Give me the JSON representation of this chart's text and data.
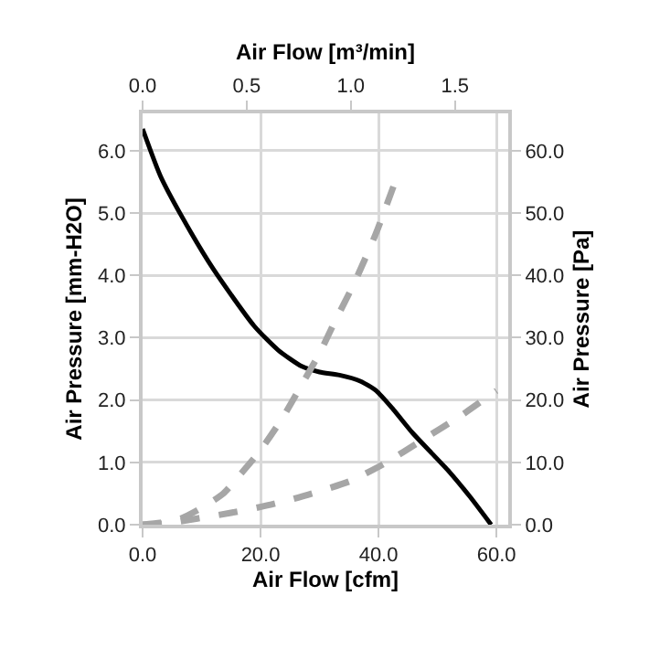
{
  "chart_data": {
    "type": "line",
    "xlabel": "Air Flow [cfm]",
    "x2label": "Air Flow [m³/min]",
    "ylabel": "Air Pressure [mm-H2O]",
    "y2label": "Air Pressure [Pa]",
    "xlim": [
      0,
      62
    ],
    "xticks": [
      {
        "value": 0,
        "label": "0.0"
      },
      {
        "value": 20,
        "label": "20.0"
      },
      {
        "value": 40,
        "label": "40.0"
      },
      {
        "value": 60,
        "label": "60.0"
      }
    ],
    "x2lim": [
      0,
      1.756
    ],
    "x2ticks": [
      {
        "value": 0,
        "label": "0.0"
      },
      {
        "value": 0.5,
        "label": "0.5"
      },
      {
        "value": 1,
        "label": "1.0"
      },
      {
        "value": 1.5,
        "label": "1.5"
      }
    ],
    "ylim": [
      0,
      6.6
    ],
    "yticks": [
      {
        "value": 0,
        "label": "0.0"
      },
      {
        "value": 1,
        "label": "1.0"
      },
      {
        "value": 2,
        "label": "2.0"
      },
      {
        "value": 3,
        "label": "3.0"
      },
      {
        "value": 4,
        "label": "4.0"
      },
      {
        "value": 5,
        "label": "5.0"
      },
      {
        "value": 6,
        "label": "6.0"
      }
    ],
    "y2lim": [
      0,
      66
    ],
    "y2ticks": [
      {
        "value": 0,
        "label": "0.0"
      },
      {
        "value": 10,
        "label": "10.0"
      },
      {
        "value": 20,
        "label": "20.0"
      },
      {
        "value": 30,
        "label": "30.0"
      },
      {
        "value": 40,
        "label": "40.0"
      },
      {
        "value": 50,
        "label": "50.0"
      },
      {
        "value": 60,
        "label": "60.0"
      }
    ],
    "grid": true,
    "marker": "none",
    "series": [
      {
        "color": "#000000",
        "line_style": "solid",
        "x": [
          0,
          3,
          6.5,
          12,
          18.9,
          23,
          27,
          30,
          33.4,
          37,
          39.6,
          42.5,
          45.8,
          49,
          52,
          55.5,
          59.1
        ],
        "values": [
          6.35,
          5.6,
          4.97,
          4.1,
          3.19,
          2.8,
          2.54,
          2.45,
          2.4,
          2.3,
          2.15,
          1.85,
          1.47,
          1.15,
          0.85,
          0.45,
          0
        ]
      },
      {
        "color": "#a6a6a6",
        "line_style": "dashed",
        "x": [
          0,
          3,
          6.5,
          10,
          13.7,
          16.5,
          19.8,
          23.5,
          27,
          30,
          32.3,
          36,
          39.6,
          42.7
        ],
        "values": [
          0,
          0.03,
          0.1,
          0.27,
          0.5,
          0.8,
          1.17,
          1.68,
          2.25,
          2.75,
          3.2,
          3.9,
          4.68,
          5.47
        ]
      },
      {
        "color": "#a6a6a6",
        "line_style": "dashed",
        "x": [
          0,
          4,
          9.3,
          15,
          21.7,
          28,
          35.2,
          41,
          47.6,
          54,
          60
        ],
        "values": [
          0,
          0.02,
          0.1,
          0.19,
          0.32,
          0.48,
          0.7,
          0.98,
          1.37,
          1.75,
          2.15
        ]
      }
    ]
  }
}
